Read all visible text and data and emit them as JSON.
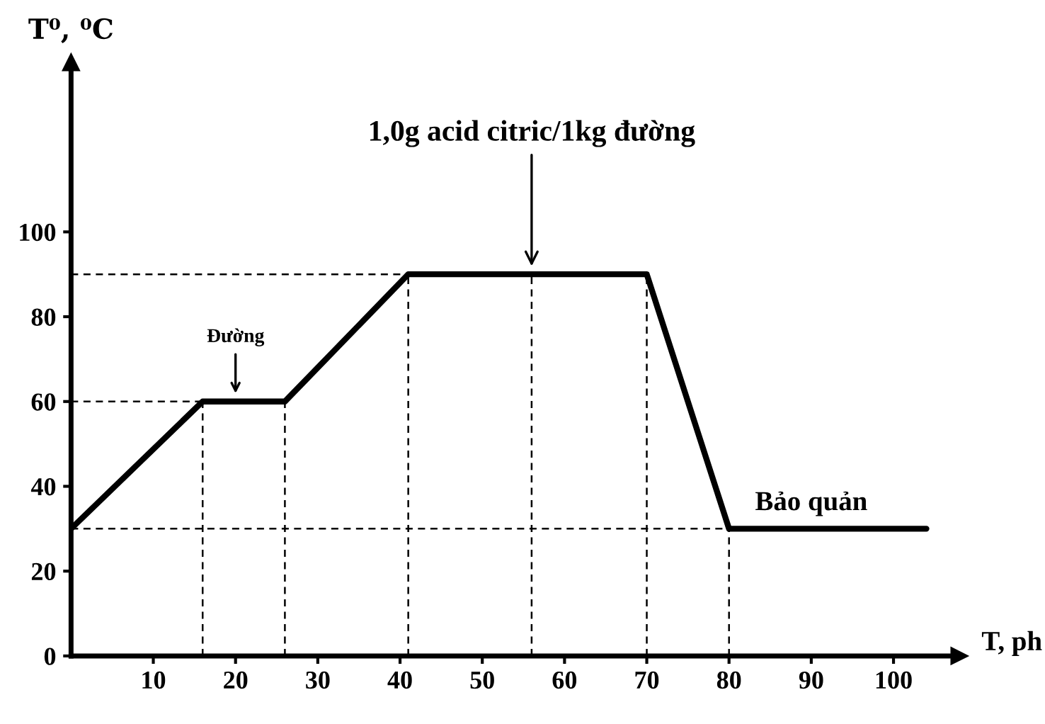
{
  "chart_data": {
    "type": "line",
    "xlabel": "T, ph",
    "ylabel": "T⁰, ⁰C",
    "xlim": [
      0,
      108
    ],
    "ylim": [
      0,
      140
    ],
    "xticks": [
      10,
      20,
      30,
      40,
      50,
      60,
      70,
      80,
      90,
      100
    ],
    "yticks": [
      0,
      20,
      40,
      60,
      80,
      100
    ],
    "grid": false,
    "legend": false,
    "marker": "none",
    "series": [
      {
        "color": "#000000",
        "x": [
          0,
          16,
          26,
          41,
          70,
          80,
          104
        ],
        "values": [
          30,
          60,
          60,
          90,
          90,
          30,
          30
        ],
        "line_style": "solid"
      },
      {
        "color": "#000000",
        "x": [
          0,
          80
        ],
        "values": [
          30,
          30
        ],
        "line_style": "dashed"
      },
      {
        "color": "#000000",
        "x": [
          0,
          16
        ],
        "values": [
          60,
          60
        ],
        "line_style": "dashed"
      },
      {
        "color": "#000000",
        "x": [
          0,
          41
        ],
        "values": [
          90,
          90
        ],
        "line_style": "dashed"
      },
      {
        "color": "#000000",
        "x": [
          16,
          16
        ],
        "values": [
          0,
          60
        ],
        "line_style": "dashed"
      },
      {
        "color": "#000000",
        "x": [
          26,
          26
        ],
        "values": [
          0,
          60
        ],
        "line_style": "dashed"
      },
      {
        "color": "#000000",
        "x": [
          41,
          41
        ],
        "values": [
          0,
          90
        ],
        "line_style": "dashed"
      },
      {
        "color": "#000000",
        "x": [
          56,
          56
        ],
        "values": [
          0,
          90
        ],
        "line_style": "dashed"
      },
      {
        "color": "#000000",
        "x": [
          70,
          70
        ],
        "values": [
          0,
          90
        ],
        "line_style": "dashed"
      },
      {
        "color": "#000000",
        "x": [
          80,
          80
        ],
        "values": [
          0,
          30
        ],
        "line_style": "dashed"
      }
    ],
    "annotations": [
      {
        "text": "1,0g acid citric/1kg đường",
        "x": 56,
        "y": 90
      },
      {
        "text": "Đường",
        "x": 20,
        "y": 60
      },
      {
        "text": "Bảo quản",
        "x": 90,
        "y": 30
      }
    ]
  }
}
